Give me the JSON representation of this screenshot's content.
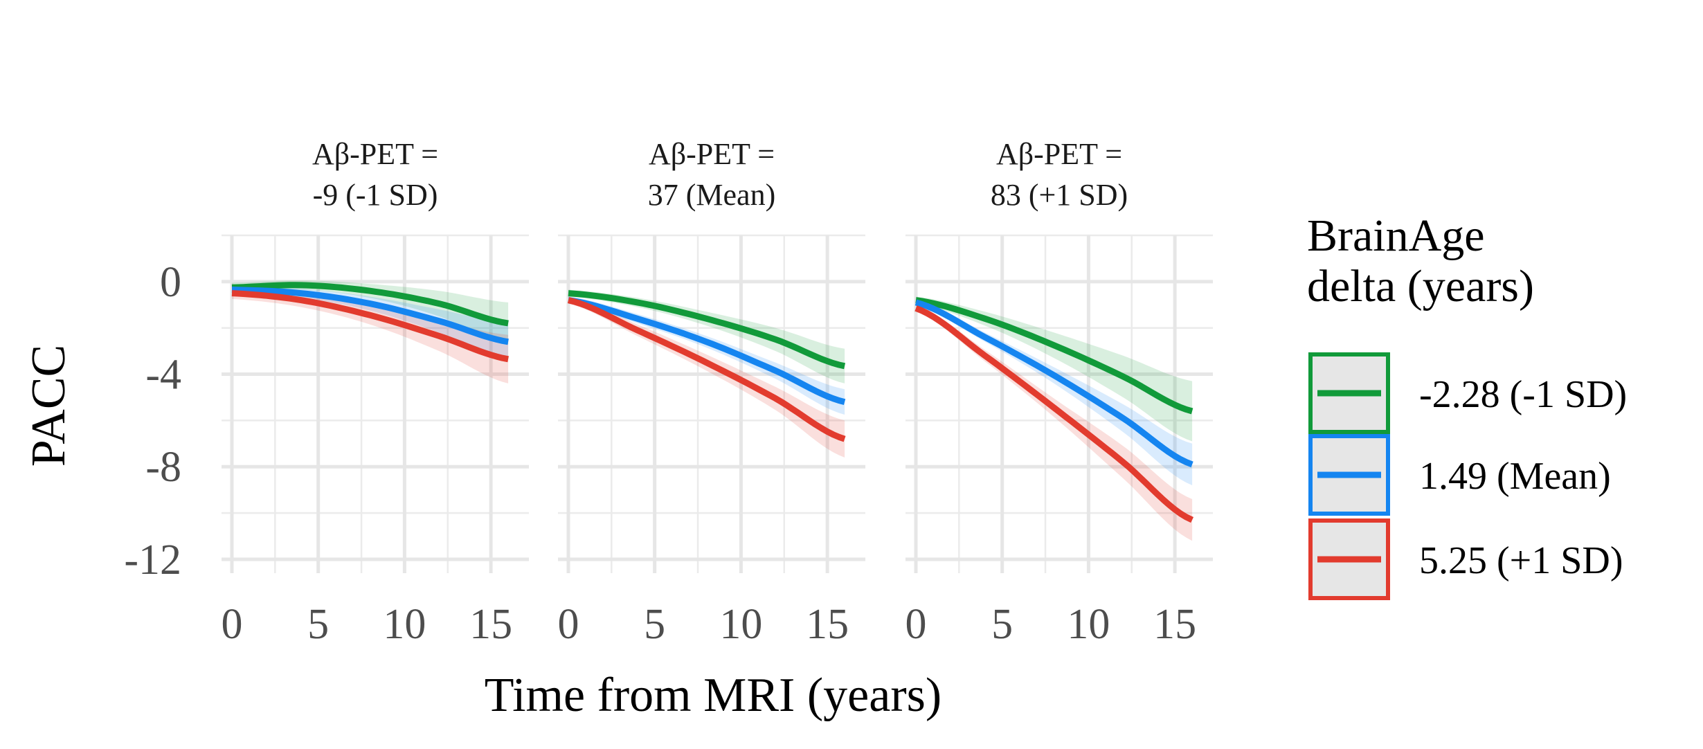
{
  "chart_data": {
    "type": "line",
    "xlabel": "Time from MRI (years)",
    "ylabel": "PACC",
    "xlim": [
      -0.6,
      17.2
    ],
    "ylim": [
      -12.6,
      2.0
    ],
    "x_ticks": [
      0,
      5,
      10,
      15
    ],
    "x_tick_labels": [
      "0",
      "5",
      "10",
      "15"
    ],
    "y_ticks": [
      0,
      -4,
      -8,
      -12
    ],
    "y_tick_labels": [
      "0",
      "-4",
      "-8",
      "-12"
    ],
    "grid": true,
    "legend": {
      "title_lines": [
        "BrainAge",
        "delta (years)"
      ],
      "position": "right"
    },
    "series_colors": [
      "#119a3a",
      "#1585f0",
      "#e23b2e"
    ],
    "series_labels": [
      "-2.28 (-1 SD)",
      "1.49 (Mean)",
      "5.25 (+1 SD)"
    ],
    "panels": [
      {
        "strip_lines": [
          "Aβ-PET =",
          "-9 (-1 SD)"
        ],
        "x": [
          0,
          4,
          8,
          12,
          16
        ],
        "series": [
          {
            "name": "-2.28 (-1 SD)",
            "values": [
              -0.25,
              -0.15,
              -0.4,
              -0.95,
              -1.8
            ],
            "ci_lower": [
              -0.45,
              -0.35,
              -0.7,
              -1.5,
              -2.7
            ],
            "ci_upper": [
              -0.05,
              0.05,
              -0.1,
              -0.4,
              -0.9
            ]
          },
          {
            "name": "1.49 (Mean)",
            "values": [
              -0.35,
              -0.5,
              -0.95,
              -1.7,
              -2.6
            ],
            "ci_lower": [
              -0.55,
              -0.7,
              -1.25,
              -2.2,
              -3.4
            ],
            "ci_upper": [
              -0.15,
              -0.3,
              -0.65,
              -1.2,
              -1.8
            ]
          },
          {
            "name": "5.25 (+1 SD)",
            "values": [
              -0.5,
              -0.8,
              -1.45,
              -2.35,
              -3.35
            ],
            "ci_lower": [
              -0.75,
              -1.1,
              -1.85,
              -3.0,
              -4.4
            ],
            "ci_upper": [
              -0.25,
              -0.5,
              -1.05,
              -1.7,
              -2.3
            ]
          }
        ]
      },
      {
        "strip_lines": [
          "Aβ-PET =",
          "37 (Mean)"
        ],
        "x": [
          0,
          4,
          8,
          12,
          16
        ],
        "series": [
          {
            "name": "-2.28 (-1 SD)",
            "values": [
              -0.5,
              -0.9,
              -1.6,
              -2.5,
              -3.65
            ],
            "ci_lower": [
              -0.65,
              -1.1,
              -1.9,
              -3.0,
              -4.4
            ],
            "ci_upper": [
              -0.35,
              -0.7,
              -1.3,
              -2.0,
              -2.9
            ]
          },
          {
            "name": "1.49 (Mean)",
            "values": [
              -0.8,
              -1.6,
              -2.6,
              -3.85,
              -5.2
            ],
            "ci_lower": [
              -0.95,
              -1.8,
              -2.85,
              -4.2,
              -5.75
            ],
            "ci_upper": [
              -0.65,
              -1.4,
              -2.35,
              -3.5,
              -4.65
            ]
          },
          {
            "name": "5.25 (+1 SD)",
            "values": [
              -0.8,
              -2.1,
              -3.5,
              -5.05,
              -6.8
            ],
            "ci_lower": [
              -0.95,
              -2.35,
              -3.85,
              -5.55,
              -7.6
            ],
            "ci_upper": [
              -0.65,
              -1.85,
              -3.15,
              -4.55,
              -6.0
            ]
          }
        ]
      },
      {
        "strip_lines": [
          "Aβ-PET =",
          "83 (+1 SD)"
        ],
        "x": [
          0,
          4,
          8,
          12,
          16
        ],
        "series": [
          {
            "name": "-2.28 (-1 SD)",
            "values": [
              -0.8,
              -1.6,
              -2.75,
              -4.1,
              -5.6
            ],
            "ci_lower": [
              -0.95,
              -1.9,
              -3.3,
              -5.0,
              -6.9
            ],
            "ci_upper": [
              -0.65,
              -1.3,
              -2.2,
              -3.2,
              -4.3
            ]
          },
          {
            "name": "1.49 (Mean)",
            "values": [
              -0.9,
              -2.4,
              -4.05,
              -5.9,
              -7.9
            ],
            "ci_lower": [
              -1.05,
              -2.6,
              -4.4,
              -6.5,
              -8.8
            ],
            "ci_upper": [
              -0.75,
              -2.2,
              -3.7,
              -5.3,
              -7.0
            ]
          },
          {
            "name": "5.25 (+1 SD)",
            "values": [
              -1.15,
              -3.2,
              -5.45,
              -7.8,
              -10.3
            ],
            "ci_lower": [
              -1.3,
              -3.45,
              -5.85,
              -8.5,
              -11.2
            ],
            "ci_upper": [
              -1.0,
              -2.95,
              -5.05,
              -7.1,
              -9.4
            ]
          }
        ]
      }
    ]
  }
}
